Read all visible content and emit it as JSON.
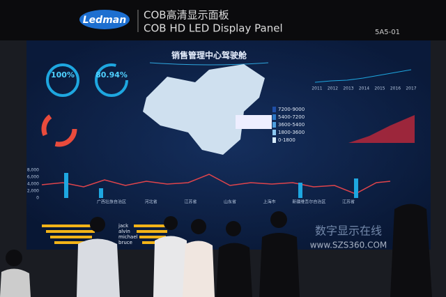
{
  "header": {
    "logo": "Ledman",
    "title_cn": "COB高清显示面板",
    "title_en": "COB HD LED Display Panel",
    "booth": "5A5-01"
  },
  "dashboard": {
    "title": "销售管理中心驾驶舱",
    "kpis": [
      "100%",
      "80.94%"
    ],
    "map_legend": [
      "7200-9000",
      "5400-7200",
      "3600-5400",
      "1800-3600",
      "0-1800"
    ],
    "years": [
      "2011",
      "2012",
      "2013",
      "2014",
      "2015",
      "2016",
      "2017"
    ],
    "bar_axis": [
      "8,000",
      "6,000",
      "4,000",
      "2,000",
      "0"
    ],
    "city_labels": [
      "广西壮族自治区",
      "河北省",
      "江苏省",
      "山东省",
      "上海市",
      "新疆维吾尔自治区",
      "江苏省"
    ],
    "ranking_names": [
      "jack",
      "alvin",
      "michael",
      "bruce"
    ]
  },
  "watermark": {
    "text": "数字显示在线",
    "url": "www.SZS360.COM"
  }
}
